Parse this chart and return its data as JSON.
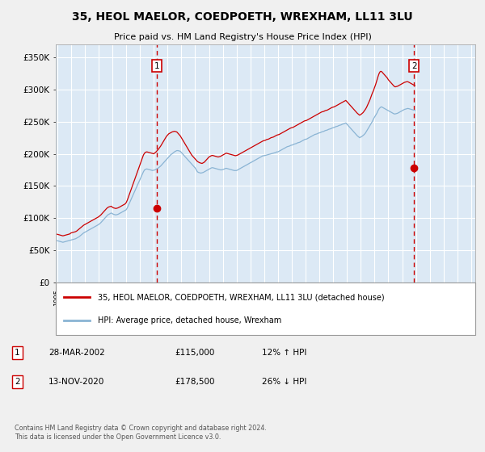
{
  "title": "35, HEOL MAELOR, COEDPOETH, WREXHAM, LL11 3LU",
  "subtitle": "Price paid vs. HM Land Registry's House Price Index (HPI)",
  "bg_color": "#dce9f5",
  "outer_bg_color": "#f0f0f0",
  "ylim": [
    0,
    370000
  ],
  "yticks": [
    0,
    50000,
    100000,
    150000,
    200000,
    250000,
    300000,
    350000
  ],
  "ytick_labels": [
    "£0",
    "£50K",
    "£100K",
    "£150K",
    "£200K",
    "£250K",
    "£300K",
    "£350K"
  ],
  "sale1_date": "28-MAR-2002",
  "sale1_price": 115000,
  "sale1_label": "1",
  "sale1_hpi_pct": "12% ↑ HPI",
  "sale1_x": 2002.24,
  "sale2_date": "13-NOV-2020",
  "sale2_price": 178500,
  "sale2_label": "2",
  "sale2_hpi_pct": "26% ↓ HPI",
  "sale2_x": 2020.87,
  "hpi_color": "#8ab4d4",
  "price_color": "#cc0000",
  "vline_color": "#cc0000",
  "legend_label1": "35, HEOL MAELOR, COEDPOETH, WREXHAM, LL11 3LU (detached house)",
  "legend_label2": "HPI: Average price, detached house, Wrexham",
  "footer": "Contains HM Land Registry data © Crown copyright and database right 2024.\nThis data is licensed under the Open Government Licence v3.0.",
  "hpi_data_monthly": [
    65000,
    64500,
    64000,
    63500,
    63000,
    62500,
    63000,
    63500,
    64000,
    64500,
    65000,
    65500,
    66000,
    66500,
    67000,
    67500,
    68000,
    69000,
    70000,
    71000,
    72500,
    74000,
    75500,
    77000,
    78000,
    79000,
    80000,
    81000,
    82000,
    83000,
    84000,
    85000,
    86000,
    87000,
    88000,
    89000,
    90000,
    91500,
    93000,
    95000,
    97000,
    99000,
    101000,
    103000,
    105000,
    106000,
    107000,
    108000,
    107000,
    106000,
    105500,
    105000,
    105500,
    106000,
    107000,
    108000,
    109000,
    110000,
    111000,
    112000,
    113000,
    116000,
    120000,
    124000,
    128000,
    132000,
    136000,
    140000,
    144000,
    148000,
    152000,
    156000,
    160000,
    164000,
    168000,
    172000,
    175000,
    176000,
    176500,
    176000,
    175500,
    175000,
    174500,
    174000,
    174500,
    175000,
    176000,
    177000,
    178000,
    179500,
    181000,
    183000,
    185000,
    187000,
    189000,
    191000,
    193000,
    195000,
    197000,
    199000,
    200000,
    201500,
    203000,
    204000,
    205000,
    205000,
    204500,
    204000,
    202000,
    200000,
    198000,
    196000,
    194000,
    192000,
    190000,
    188000,
    186000,
    184000,
    182000,
    180000,
    178000,
    175000,
    172000,
    171000,
    170500,
    170000,
    170500,
    171000,
    172000,
    173000,
    174000,
    175000,
    176000,
    177000,
    178000,
    178500,
    178000,
    177500,
    177000,
    176500,
    176000,
    175500,
    175000,
    175000,
    175500,
    176000,
    177000,
    177500,
    177000,
    176500,
    176000,
    175500,
    175000,
    174500,
    174000,
    174000,
    174000,
    175000,
    176000,
    177000,
    178000,
    179000,
    180000,
    181000,
    182000,
    183000,
    184000,
    185000,
    186000,
    187000,
    188000,
    189000,
    190000,
    191000,
    192000,
    193000,
    194000,
    195000,
    196000,
    197000,
    197000,
    197500,
    198000,
    198500,
    199000,
    199500,
    200000,
    200500,
    201000,
    201500,
    202000,
    203000,
    203000,
    204000,
    205000,
    206000,
    207000,
    208000,
    209000,
    210000,
    211000,
    211500,
    212000,
    213000,
    213500,
    214000,
    215000,
    215500,
    216000,
    217000,
    217500,
    218000,
    219000,
    220000,
    221000,
    222000,
    222500,
    223000,
    224000,
    225000,
    226000,
    227000,
    228000,
    229000,
    230000,
    230500,
    231000,
    232000,
    232500,
    233000,
    234000,
    234500,
    235000,
    236000,
    236500,
    237000,
    238000,
    238500,
    239000,
    240000,
    240500,
    241000,
    242000,
    242500,
    243000,
    244000,
    244500,
    245000,
    246000,
    246500,
    247000,
    248000,
    246000,
    244000,
    242000,
    240000,
    238000,
    236000,
    234000,
    232000,
    230000,
    228000,
    226500,
    225000,
    226000,
    227000,
    228500,
    230000,
    232000,
    235000,
    238000,
    241000,
    244000,
    247000,
    250000,
    254000,
    257000,
    260000,
    263000,
    267000,
    270000,
    272000,
    273000,
    272000,
    271000,
    270000,
    269000,
    268000,
    267000,
    266000,
    265000,
    264000,
    263000,
    262000,
    262000,
    262500,
    263000,
    264000,
    265000,
    266000,
    267000,
    268000,
    269000,
    269500,
    270000,
    270500,
    270000,
    269500,
    269000,
    268500,
    268000,
    267500
  ],
  "price_data_monthly": [
    75000,
    74500,
    74000,
    73500,
    73000,
    72500,
    73000,
    73500,
    74000,
    74500,
    75000,
    75500,
    77000,
    77500,
    78000,
    78500,
    79000,
    80000,
    81500,
    83000,
    84500,
    86000,
    87500,
    89000,
    90000,
    91000,
    92000,
    93000,
    94000,
    95000,
    96000,
    97000,
    98000,
    99000,
    100000,
    101000,
    102000,
    103500,
    105000,
    107000,
    109000,
    111000,
    113000,
    115000,
    116500,
    117500,
    118000,
    118500,
    117000,
    116000,
    115500,
    115000,
    115500,
    116000,
    117000,
    118000,
    119000,
    120000,
    121000,
    122000,
    124000,
    128000,
    133000,
    138000,
    143000,
    148000,
    153000,
    158000,
    163000,
    168000,
    173000,
    178000,
    183000,
    188000,
    193000,
    198000,
    201000,
    202500,
    203000,
    202500,
    202000,
    201500,
    201000,
    200500,
    200000,
    201500,
    203000,
    205000,
    207000,
    209500,
    212000,
    215000,
    218000,
    221000,
    224000,
    227000,
    229000,
    231000,
    232000,
    233000,
    234000,
    234500,
    235000,
    234500,
    234000,
    232000,
    230000,
    228000,
    225000,
    222000,
    219000,
    216000,
    213000,
    210000,
    207000,
    204000,
    201000,
    198000,
    196000,
    194000,
    192000,
    190000,
    188000,
    187000,
    186000,
    185500,
    185000,
    186000,
    187000,
    189000,
    191000,
    193000,
    195000,
    196000,
    197000,
    197500,
    197000,
    196500,
    196000,
    195500,
    195000,
    195500,
    196000,
    197000,
    198000,
    199000,
    200000,
    201000,
    200500,
    200000,
    199500,
    199000,
    198500,
    198000,
    197500,
    197000,
    197500,
    198000,
    199000,
    200000,
    201000,
    202000,
    203000,
    204000,
    205000,
    206000,
    207000,
    208000,
    209000,
    210000,
    211000,
    212000,
    213000,
    214000,
    215000,
    216000,
    217000,
    218000,
    219000,
    220000,
    220500,
    221000,
    222000,
    222500,
    223000,
    224000,
    225000,
    225500,
    226000,
    227000,
    228000,
    229000,
    229500,
    230000,
    231000,
    232000,
    233000,
    234000,
    235000,
    236000,
    237000,
    238000,
    239000,
    240000,
    240500,
    241000,
    242000,
    243000,
    244000,
    245000,
    246000,
    247000,
    248000,
    249000,
    250000,
    251000,
    251500,
    252000,
    253000,
    254000,
    255000,
    256000,
    257000,
    258000,
    259000,
    260000,
    261000,
    262000,
    263000,
    264000,
    265000,
    265500,
    266000,
    267000,
    267500,
    268000,
    269000,
    270000,
    271000,
    272000,
    272500,
    273000,
    274000,
    275000,
    276000,
    277000,
    278000,
    279000,
    280000,
    281000,
    282000,
    283000,
    281000,
    279000,
    277000,
    275000,
    273000,
    271000,
    269000,
    267000,
    265000,
    263000,
    261500,
    260000,
    261000,
    262500,
    264000,
    266500,
    269000,
    272000,
    276000,
    280000,
    284000,
    289000,
    294000,
    298000,
    303000,
    308000,
    314000,
    320000,
    325000,
    328000,
    328000,
    326000,
    324000,
    322000,
    320000,
    318000,
    315000,
    313000,
    311000,
    309000,
    307000,
    305000,
    304000,
    304500,
    305000,
    306000,
    307000,
    308000,
    309000,
    310000,
    311000,
    311500,
    312000,
    312000,
    311000,
    310000,
    309000,
    308000,
    307000,
    306000
  ]
}
